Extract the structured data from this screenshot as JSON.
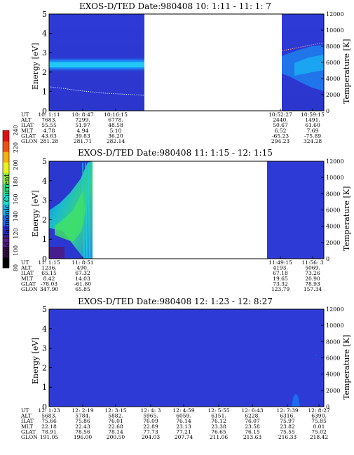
{
  "colorbar": {
    "label": "Second Harmonic Current",
    "ticks": [
      "80",
      "100",
      "120",
      "140",
      "160",
      "180",
      "200",
      "220",
      "240"
    ],
    "colors": [
      "#000000",
      "#3a0a4a",
      "#5a1c8a",
      "#2a2ad8",
      "#1a6cf0",
      "#14b4f0",
      "#18e0c8",
      "#30e080",
      "#90f040",
      "#e8f020",
      "#f8b010",
      "#f05010",
      "#e01010"
    ]
  },
  "chart_data": [
    {
      "type": "heatmap",
      "title": "EXOS-D/TED   Date:980408  10: 1:11 - 11: 1: 7",
      "ylabel": "Energy [eV]",
      "ylabel_right": "Temperature [K]",
      "ylim": [
        0,
        5
      ],
      "ylim_right": [
        0,
        12000
      ],
      "yticks": [
        "0",
        "1",
        "2",
        "3",
        "4",
        "5"
      ],
      "yticks_right": [
        "0",
        "2000",
        "4000",
        "6000",
        "8000",
        "10000",
        "12000"
      ],
      "orbit_table": {
        "row_labels": [
          "UT",
          "ALT",
          "ILAT",
          "MLT",
          "GLAT",
          "GLON"
        ],
        "columns": [
          {
            "UT": "10: 1:11",
            "ALT": "7683.",
            "ILAT": "55.55",
            "MLT": "4.78",
            "GLAT": "43.63",
            "GLON": "281.28"
          },
          {
            "UT": "10: 8:47",
            "ALT": "7299.",
            "ILAT": "51.97",
            "MLT": "4.94",
            "GLAT": "39.83",
            "GLON": "281.71"
          },
          {
            "UT": "10:16:15",
            "ALT": "6778.",
            "ILAT": "48.58",
            "MLT": "5.10",
            "GLAT": "36.20",
            "GLON": "282.14"
          },
          {
            "UT": "10:52:27",
            "ALT": "2440.",
            "ILAT": "50.67",
            "MLT": "6.52",
            "GLAT": "-65.23",
            "GLON": "294.23"
          },
          {
            "UT": "10:59:15",
            "ALT": "1491.",
            "ILAT": "61.60",
            "MLT": "7.69",
            "GLAT": "-75.89",
            "GLON": "324.28"
          }
        ]
      }
    },
    {
      "type": "heatmap",
      "title": "EXOS-D/TED   Date:980408  11: 1:15 - 12: 1:15",
      "ylabel": "Energy [eV]",
      "ylabel_right": "Temperature [K]",
      "ylim": [
        0,
        5
      ],
      "ylim_right": [
        0,
        12000
      ],
      "yticks": [
        "0",
        "1",
        "2",
        "3",
        "4",
        "5"
      ],
      "yticks_right": [
        "0",
        "2000",
        "4000",
        "6000",
        "8000",
        "10000",
        "12000"
      ],
      "orbit_table": {
        "row_labels": [
          "UT",
          "ALT",
          "ILAT",
          "MLT",
          "GLAT",
          "GLON"
        ],
        "columns": [
          {
            "UT": "11: 1:15",
            "ALT": "1236.",
            "ILAT": "65.15",
            "MLT": "8.42",
            "GLAT": "-78.03",
            "GLON": "347.90"
          },
          {
            "UT": "11: 8:51",
            "ALT": "490.",
            "ILAT": "67.32",
            "MLT": "14.03",
            "GLAT": "-61.80",
            "GLON": "65.85"
          },
          {
            "UT": "11:49:15",
            "ALT": "4193.",
            "ILAT": "67.18",
            "MLT": "19.65",
            "GLAT": "73.32",
            "GLON": "123.79"
          },
          {
            "UT": "11:56: 3",
            "ALT": "5069.",
            "ILAT": "73.26",
            "MLT": "20.90",
            "GLAT": "78.93",
            "GLON": "157.34"
          }
        ]
      }
    },
    {
      "type": "heatmap",
      "title": "EXOS-D/TED   Date:980408  12: 1:23 - 12: 8:27",
      "ylabel": "Energy [eV]",
      "ylabel_right": "Temperature [K]",
      "ylim": [
        0,
        5
      ],
      "ylim_right": [
        0,
        12000
      ],
      "yticks": [
        "0",
        "1",
        "2",
        "3",
        "4",
        "5"
      ],
      "yticks_right": [
        "0",
        "2000",
        "4000",
        "6000",
        "8000",
        "10000",
        "12000"
      ],
      "orbit_table": {
        "row_labels": [
          "UT",
          "ALT",
          "ILAT",
          "MLT",
          "GLAT",
          "GLON"
        ],
        "columns": [
          {
            "UT": "12: 1:23",
            "ALT": "5683.",
            "ILAT": "75.66",
            "MLT": "22.18",
            "GLAT": "78.91",
            "GLON": "191.05"
          },
          {
            "UT": "12: 2:19",
            "ALT": "5784.",
            "ILAT": "75.86",
            "MLT": "22.43",
            "GLAT": "78.56",
            "GLON": "196.00"
          },
          {
            "UT": "12: 3:15",
            "ALT": "5882.",
            "ILAT": "76.01",
            "MLT": "22.68",
            "GLAT": "78.14",
            "GLON": "200.50"
          },
          {
            "UT": "12: 4: 3",
            "ALT": "5965.",
            "ILAT": "76.09",
            "MLT": "22.89",
            "GLAT": "77.73",
            "GLON": "204.03"
          },
          {
            "UT": "12: 4:59",
            "ALT": "6059.",
            "ILAT": "76.14",
            "MLT": "23.13",
            "GLAT": "77.21",
            "GLON": "207.74"
          },
          {
            "UT": "12: 5:55",
            "ALT": "6151.",
            "ILAT": "76.12",
            "MLT": "23.38",
            "GLAT": "76.65",
            "GLON": "211.06"
          },
          {
            "UT": "12: 6:43",
            "ALT": "6228.",
            "ILAT": "76.07",
            "MLT": "23.58",
            "GLAT": "76.15",
            "GLON": "213.63"
          },
          {
            "UT": "12: 7:39",
            "ALT": "6316.",
            "ILAT": "75.97",
            "MLT": "23.82",
            "GLAT": "75.55",
            "GLON": "216.33"
          },
          {
            "UT": "12: 8:27",
            "ALT": "6390.",
            "ILAT": "75.85",
            "MLT": "0.01",
            "GLAT": "75.02",
            "GLON": "218.42"
          }
        ]
      }
    }
  ]
}
